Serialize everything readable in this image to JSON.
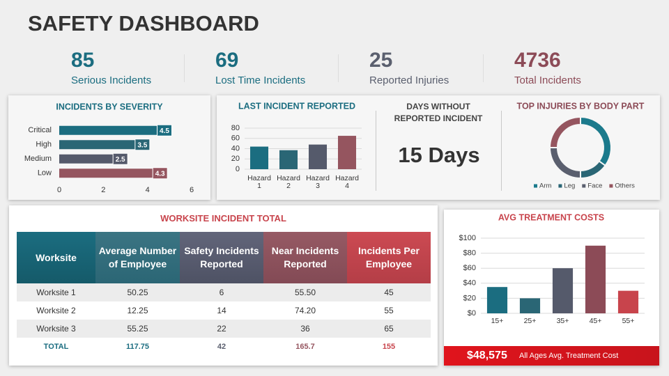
{
  "title": "SAFETY DASHBOARD",
  "kpis": [
    {
      "value": 85,
      "label": "Serious Incidents",
      "color": "#1b6d80"
    },
    {
      "value": 69,
      "label": "Lost Time Incidents",
      "color": "#1b6d80"
    },
    {
      "value": 25,
      "label": "Reported Injuries",
      "color": "#5a5f6e"
    },
    {
      "value": 4736,
      "label": "Total Incidents",
      "color": "#8c4b57"
    }
  ],
  "chart_data": [
    {
      "type": "bar",
      "orientation": "horizontal",
      "title": "INCIDENTS BY SEVERITY",
      "categories": [
        "Critical",
        "High",
        "Medium",
        "Low"
      ],
      "values": [
        4.5,
        3.5,
        2.5,
        4.3
      ],
      "colors": [
        "#1b6d80",
        "#2a6675",
        "#555a6b",
        "#95555f"
      ],
      "xlim": [
        0,
        6
      ],
      "xticks": [
        0,
        2,
        4,
        6
      ],
      "grid": false
    },
    {
      "type": "bar",
      "title": "LAST INCIDENT REPORTED",
      "categories": [
        "Hazard 1",
        "Hazard 2",
        "Hazard 3",
        "Hazard 4"
      ],
      "values": [
        44,
        37,
        48,
        65
      ],
      "colors": [
        "#1b6d80",
        "#2a6675",
        "#555a6b",
        "#95555f"
      ],
      "ylim": [
        0,
        80
      ],
      "yticks": [
        0,
        20,
        40,
        60,
        80
      ],
      "grid": true
    },
    {
      "type": "pie",
      "hole": true,
      "title": "TOP INJURIES BY BODY PART",
      "categories": [
        "Arm",
        "Leg",
        "Face",
        "Others"
      ],
      "values": [
        35,
        15,
        25,
        25
      ],
      "colors": [
        "#1b7a8c",
        "#2a6675",
        "#5a5f6e",
        "#95555f"
      ]
    },
    {
      "type": "bar",
      "title": "AVG TREATMENT COSTS",
      "categories": [
        "15+",
        "25+",
        "35+",
        "45+",
        "55+"
      ],
      "values": [
        35,
        20,
        60,
        90,
        30
      ],
      "colors": [
        "#1b6d80",
        "#2a6675",
        "#555a6b",
        "#8c4b57",
        "#c8444c"
      ],
      "ylim": [
        0,
        100
      ],
      "yticks": [
        {
          "value": 0,
          "label": "$0"
        },
        {
          "value": 20,
          "label": "$20"
        },
        {
          "value": 40,
          "label": "$40"
        },
        {
          "value": 60,
          "label": "$60"
        },
        {
          "value": 80,
          "label": "$80"
        },
        {
          "value": 100,
          "label": "$100"
        }
      ],
      "grid": true
    }
  ],
  "days_panel": {
    "title": "DAYS WITHOUT REPORTED INCIDENT",
    "value": "15 Days"
  },
  "table": {
    "title": "WORKSITE INCIDENT TOTAL",
    "headers": [
      "Worksite",
      "Average Number of Employee",
      "Safety Incidents Reported",
      "Near Incidents Reported",
      "Incidents Per Employee"
    ],
    "rows": [
      [
        "Worksite 1",
        "50.25",
        "6",
        "55.50",
        "45"
      ],
      [
        "Worksite 2",
        "12.25",
        "14",
        "74.20",
        "55"
      ],
      [
        "Worksite 3",
        "55.25",
        "22",
        "36",
        "65"
      ]
    ],
    "total": [
      "TOTAL",
      "117.75",
      "42",
      "165.7",
      "155"
    ]
  },
  "footer": {
    "value": "$48,575",
    "label": "All Ages Avg. Treatment Cost"
  }
}
